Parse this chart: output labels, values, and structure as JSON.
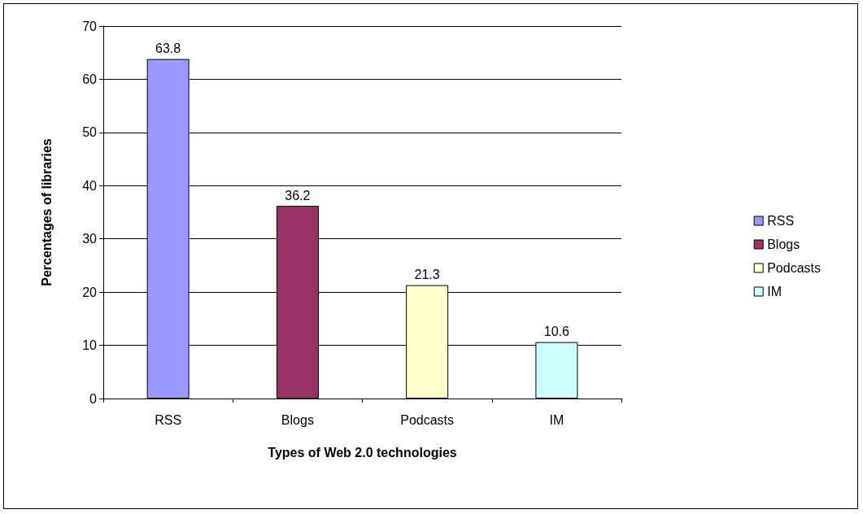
{
  "chart_data": {
    "type": "bar",
    "xlabel": "Types of Web 2.0 technologies",
    "ylabel": "Percentages of libraries",
    "categories": [
      "RSS",
      "Blogs",
      "Podcasts",
      "IM"
    ],
    "series": [
      {
        "name": "RSS",
        "color": "#9999ff",
        "values": [
          63.8,
          null,
          null,
          null
        ]
      },
      {
        "name": "Blogs",
        "color": "#993366",
        "values": [
          null,
          36.2,
          null,
          null
        ]
      },
      {
        "name": "Podcasts",
        "color": "#ffffcc",
        "values": [
          null,
          null,
          21.3,
          null
        ]
      },
      {
        "name": "IM",
        "color": "#ccffff",
        "values": [
          null,
          null,
          null,
          10.6
        ]
      }
    ],
    "ylim": [
      0,
      70
    ],
    "yticks": [
      0,
      10,
      20,
      30,
      40,
      50,
      60,
      70
    ],
    "grid": "y",
    "legend": "right",
    "data_labels": true
  }
}
